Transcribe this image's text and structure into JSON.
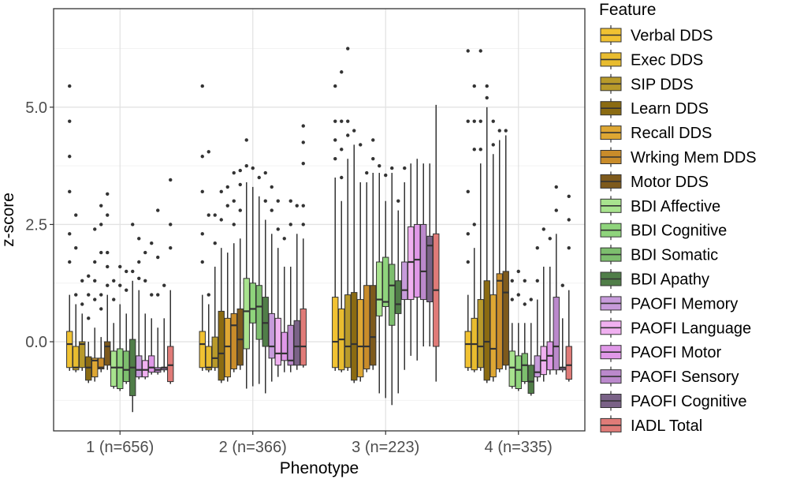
{
  "chart_data": {
    "type": "boxplot",
    "xlabel": "Phenotype",
    "ylabel": "z-score",
    "ylim": [
      -1.9,
      7.1
    ],
    "yticks": [
      0.0,
      2.5,
      5.0
    ],
    "ytick_labels": [
      "0.0",
      "2.5",
      "5.0"
    ],
    "grid": true,
    "legend": {
      "title": "Feature",
      "placement": "right"
    },
    "categories": [
      "1 (n=656)",
      "2 (n=366)",
      "3 (n=223)",
      "4 (n=335)"
    ],
    "series": [
      {
        "name": "Verbal DDS",
        "color": "#F1C232",
        "boxes": [
          {
            "min": -0.62,
            "q1": -0.55,
            "median": -0.05,
            "q3": 0.22,
            "max": 1.0,
            "outliers": [
              1.7,
              2.3,
              3.2,
              3.95,
              4.7,
              5.45
            ]
          },
          {
            "min": -0.62,
            "q1": -0.55,
            "median": -0.05,
            "q3": 0.22,
            "max": 1.0,
            "outliers": [
              1.7,
              2.3,
              3.2,
              3.95,
              5.45
            ]
          },
          {
            "min": -0.62,
            "q1": -0.55,
            "median": 0.0,
            "q3": 0.95,
            "max": 3.5,
            "outliers": [
              3.9,
              4.3,
              4.7,
              5.45
            ]
          },
          {
            "min": -0.62,
            "q1": -0.55,
            "median": -0.05,
            "q3": 0.22,
            "max": 1.0,
            "outliers": [
              1.7,
              2.3,
              3.2,
              4.7,
              6.2
            ]
          }
        ]
      },
      {
        "name": "Exec DDS",
        "color": "#E8BC2F",
        "boxes": [
          {
            "min": -0.65,
            "q1": -0.6,
            "median": -0.55,
            "q3": -0.1,
            "max": 0.8,
            "outliers": [
              1.0,
              2.0,
              2.7
            ]
          },
          {
            "min": -0.65,
            "q1": -0.6,
            "median": -0.55,
            "q3": -0.1,
            "max": 0.8,
            "outliers": [
              1.0,
              2.7,
              4.05
            ]
          },
          {
            "min": -0.65,
            "q1": -0.6,
            "median": 0.05,
            "q3": 0.7,
            "max": 3.0,
            "outliers": [
              3.5,
              4.1,
              4.7,
              5.75
            ]
          },
          {
            "min": -0.65,
            "q1": -0.6,
            "median": -0.05,
            "q3": 0.5,
            "max": 2.0,
            "outliers": [
              2.5,
              4.1,
              4.7,
              5.45
            ]
          }
        ]
      },
      {
        "name": "SIP DDS",
        "color": "#B89A2A",
        "boxes": [
          {
            "min": -0.62,
            "q1": -0.55,
            "median": -0.05,
            "q3": 0.0,
            "max": 0.6,
            "outliers": [
              0.8,
              1.3
            ]
          },
          {
            "min": -0.62,
            "q1": -0.55,
            "median": -0.35,
            "q3": 0.1,
            "max": 1.6,
            "outliers": [
              2.1,
              2.7
            ]
          },
          {
            "min": -0.62,
            "q1": -0.55,
            "median": -0.1,
            "q3": 1.0,
            "max": 3.9,
            "outliers": [
              4.4,
              4.7,
              6.25
            ]
          },
          {
            "min": -0.62,
            "q1": -0.55,
            "median": -0.1,
            "q3": 0.9,
            "max": 3.8,
            "outliers": [
              4.1,
              4.7,
              6.2
            ]
          }
        ]
      },
      {
        "name": "Learn DDS",
        "color": "#8B6B12",
        "boxes": [
          {
            "min": -0.88,
            "q1": -0.82,
            "median": -0.55,
            "q3": -0.32,
            "max": 0.0,
            "outliers": [
              0.5,
              1.0,
              1.4
            ]
          },
          {
            "min": -0.88,
            "q1": -0.82,
            "median": -0.25,
            "q3": 0.65,
            "max": 2.0,
            "outliers": [
              2.6,
              3.2
            ]
          },
          {
            "min": -0.88,
            "q1": -0.82,
            "median": -0.05,
            "q3": 1.05,
            "max": 4.2,
            "outliers": [
              4.5
            ]
          },
          {
            "min": -0.88,
            "q1": -0.82,
            "median": 0.0,
            "q3": 1.3,
            "max": 5.0,
            "outliers": [
              5.2,
              5.45
            ]
          }
        ]
      },
      {
        "name": "Recall DDS",
        "color": "#DEA733",
        "boxes": [
          {
            "min": -0.85,
            "q1": -0.75,
            "median": -0.4,
            "q3": -0.35,
            "max": 0.3,
            "outliers": [
              0.9,
              1.3,
              1.7,
              2.4
            ]
          },
          {
            "min": -0.85,
            "q1": -0.75,
            "median": -0.1,
            "q3": 0.5,
            "max": 1.9,
            "outliers": [
              2.9,
              3.3
            ]
          },
          {
            "min": -0.85,
            "q1": -0.75,
            "median": -0.1,
            "q3": 0.9,
            "max": 3.4,
            "outliers": [
              4.2
            ]
          },
          {
            "min": -0.85,
            "q1": -0.75,
            "median": -0.15,
            "q3": 1.0,
            "max": 4.0,
            "outliers": [
              4.2,
              4.7
            ]
          }
        ]
      },
      {
        "name": "Wrking Mem DDS",
        "color": "#C98C2A",
        "boxes": [
          {
            "min": -0.65,
            "q1": -0.58,
            "median": -0.55,
            "q3": -0.35,
            "max": 0.1,
            "outliers": [
              0.7,
              1.0,
              1.9,
              2.5,
              2.9
            ]
          },
          {
            "min": -0.65,
            "q1": -0.58,
            "median": 0.35,
            "q3": 0.6,
            "max": 2.1,
            "outliers": [
              2.5,
              3.0,
              3.6
            ]
          },
          {
            "min": -0.65,
            "q1": -0.58,
            "median": -0.1,
            "q3": 1.2,
            "max": 3.4,
            "outliers": [
              3.6
            ]
          },
          {
            "min": -0.65,
            "q1": -0.58,
            "median": 1.3,
            "q3": 1.45,
            "max": 4.3,
            "outliers": [
              4.5
            ]
          }
        ]
      },
      {
        "name": "Motor DDS",
        "color": "#7E5A1C",
        "boxes": [
          {
            "min": -0.6,
            "q1": -0.5,
            "median": -0.1,
            "q3": 0.0,
            "max": 1.0,
            "outliers": [
              1.2,
              1.6,
              1.9,
              2.7,
              3.15
            ]
          },
          {
            "min": -0.6,
            "q1": -0.5,
            "median": 0.05,
            "q3": 0.7,
            "max": 2.2,
            "outliers": [
              2.8,
              3.35,
              3.65
            ]
          },
          {
            "min": -0.6,
            "q1": -0.5,
            "median": 0.1,
            "q3": 1.2,
            "max": 3.6,
            "outliers": [
              3.9,
              4.3
            ]
          },
          {
            "min": -0.6,
            "q1": -0.5,
            "median": 1.05,
            "q3": 1.5,
            "max": 4.4,
            "outliers": [
              4.5
            ]
          }
        ]
      },
      {
        "name": "BDI Affective",
        "color": "#A8E38E",
        "boxes": [
          {
            "min": -1.0,
            "q1": -0.95,
            "median": -0.55,
            "q3": -0.2,
            "max": 0.4,
            "outliers": [
              0.9,
              1.3
            ]
          },
          {
            "min": -1.0,
            "q1": -0.15,
            "median": 0.65,
            "q3": 1.35,
            "max": 3.4,
            "outliers": [
              3.75,
              4.3
            ]
          },
          {
            "min": -1.1,
            "q1": 0.55,
            "median": 0.9,
            "q3": 1.7,
            "max": 3.6,
            "outliers": [
              3.75
            ]
          },
          {
            "min": -1.0,
            "q1": -0.95,
            "median": -0.55,
            "q3": -0.2,
            "max": 0.4,
            "outliers": [
              0.9,
              1.3
            ]
          }
        ]
      },
      {
        "name": "BDI Cognitive",
        "color": "#8FD47C",
        "boxes": [
          {
            "min": -1.05,
            "q1": -1.0,
            "median": -0.55,
            "q3": -0.15,
            "max": 0.8,
            "outliers": [
              1.2,
              1.6
            ]
          },
          {
            "min": -0.95,
            "q1": 0.4,
            "median": 0.7,
            "q3": 1.25,
            "max": 3.3,
            "outliers": [
              3.7
            ]
          },
          {
            "min": -1.2,
            "q1": 0.75,
            "median": 0.85,
            "q3": 1.8,
            "max": 3.0,
            "outliers": [
              3.55
            ]
          },
          {
            "min": -1.05,
            "q1": -1.0,
            "median": -0.6,
            "q3": -0.3,
            "max": 0.4,
            "outliers": [
              1.0,
              1.5
            ]
          }
        ]
      },
      {
        "name": "BDI Somatic",
        "color": "#7DBE6E",
        "boxes": [
          {
            "min": -0.9,
            "q1": -0.85,
            "median": -0.6,
            "q3": -0.2,
            "max": 0.6,
            "outliers": [
              1.1,
              1.5
            ]
          },
          {
            "min": -0.9,
            "q1": 0.05,
            "median": 0.75,
            "q3": 1.2,
            "max": 3.1,
            "outliers": [
              3.5
            ]
          },
          {
            "min": -1.35,
            "q1": 0.35,
            "median": 1.2,
            "q3": 1.65,
            "max": 3.6,
            "outliers": [
              3.7
            ]
          },
          {
            "min": -0.9,
            "q1": -0.85,
            "median": -0.5,
            "q3": -0.25,
            "max": 0.4,
            "outliers": [
              0.8,
              1.3
            ]
          }
        ]
      },
      {
        "name": "BDI Apathy",
        "color": "#507E48",
        "boxes": [
          {
            "min": -1.5,
            "q1": -1.15,
            "median": -0.55,
            "q3": 0.05,
            "max": 1.3,
            "outliers": [
              1.5,
              2.5
            ]
          },
          {
            "min": -1.1,
            "q1": -0.1,
            "median": 0.4,
            "q3": 0.95,
            "max": 2.6,
            "outliers": [
              3.0,
              3.6
            ]
          },
          {
            "min": -1.1,
            "q1": 0.6,
            "median": 0.8,
            "q3": 1.3,
            "max": 2.8,
            "outliers": [
              3.0
            ]
          },
          {
            "min": -1.15,
            "q1": -1.1,
            "median": -0.85,
            "q3": -0.5,
            "max": 0.4,
            "outliers": [
              0.9
            ]
          }
        ]
      },
      {
        "name": "PAOFI Memory",
        "color": "#C79BDB",
        "boxes": [
          {
            "min": -0.8,
            "q1": -0.75,
            "median": -0.6,
            "q3": -0.3,
            "max": 1.1,
            "outliers": [
              1.35,
              1.7,
              2.2
            ]
          },
          {
            "min": -0.85,
            "q1": -0.35,
            "median": -0.1,
            "q3": 0.6,
            "max": 2.3,
            "outliers": [
              2.8,
              3.3
            ]
          },
          {
            "min": -0.6,
            "q1": 0.9,
            "median": 1.1,
            "q3": 1.7,
            "max": 3.4,
            "outliers": [
              3.7
            ]
          },
          {
            "min": -0.85,
            "q1": -0.75,
            "median": -0.65,
            "q3": -0.3,
            "max": 0.9,
            "outliers": [
              1.3,
              2.0
            ]
          }
        ]
      },
      {
        "name": "PAOFI Language",
        "color": "#F0B0F0",
        "boxes": [
          {
            "min": -0.8,
            "q1": -0.75,
            "median": -0.6,
            "q3": -0.4,
            "max": 0.6,
            "outliers": [
              1.3,
              1.9
            ]
          },
          {
            "min": -0.75,
            "q1": -0.5,
            "median": -0.25,
            "q3": 0.5,
            "max": 2.0,
            "outliers": [
              2.4,
              3.0
            ]
          },
          {
            "min": -0.3,
            "q1": 0.9,
            "median": 1.7,
            "q3": 2.45,
            "max": 3.8,
            "outliers": []
          },
          {
            "min": -0.85,
            "q1": -0.7,
            "median": -0.4,
            "q3": -0.1,
            "max": 1.6,
            "outliers": [
              2.4
            ]
          }
        ]
      },
      {
        "name": "PAOFI Motor",
        "color": "#E098E8",
        "boxes": [
          {
            "min": -0.7,
            "q1": -0.65,
            "median": -0.55,
            "q3": -0.3,
            "max": 0.5,
            "outliers": [
              1.0,
              2.1
            ]
          },
          {
            "min": -0.65,
            "q1": -0.4,
            "median": -0.25,
            "q3": 0.2,
            "max": 1.6,
            "outliers": [
              2.2
            ]
          },
          {
            "min": -0.4,
            "q1": 0.95,
            "median": 1.75,
            "q3": 2.5,
            "max": 3.9,
            "outliers": []
          },
          {
            "min": -0.7,
            "q1": -0.6,
            "median": -0.3,
            "q3": 0.0,
            "max": 1.6,
            "outliers": [
              2.2
            ]
          }
        ]
      },
      {
        "name": "PAOFI Sensory",
        "color": "#BB89CC",
        "boxes": [
          {
            "min": -0.7,
            "q1": -0.65,
            "median": -0.6,
            "q3": -0.55,
            "max": 0.3,
            "outliers": [
              1.0,
              1.8,
              2.8
            ]
          },
          {
            "min": -0.65,
            "q1": -0.5,
            "median": -0.4,
            "q3": 0.35,
            "max": 1.6,
            "outliers": [
              2.5,
              3.0
            ]
          },
          {
            "min": -0.1,
            "q1": 0.9,
            "median": 1.5,
            "q3": 2.5,
            "max": 3.8,
            "outliers": []
          },
          {
            "min": -0.7,
            "q1": -0.6,
            "median": -0.1,
            "q3": 0.95,
            "max": 2.3,
            "outliers": [
              2.8,
              3.3
            ]
          }
        ]
      },
      {
        "name": "PAOFI Cognitive",
        "color": "#7A6287",
        "boxes": [
          {
            "min": -0.65,
            "q1": -0.6,
            "median": -0.55,
            "q3": -0.55,
            "max": 0.5,
            "outliers": [
              1.2
            ]
          },
          {
            "min": -0.6,
            "q1": -0.5,
            "median": -0.1,
            "q3": 0.45,
            "max": 2.3,
            "outliers": [
              2.9
            ]
          },
          {
            "min": -0.1,
            "q1": 0.85,
            "median": 2.05,
            "q3": 2.25,
            "max": 3.8,
            "outliers": []
          },
          {
            "min": -0.65,
            "q1": -0.6,
            "median": -0.55,
            "q3": -0.55,
            "max": 0.5,
            "outliers": [
              1.2
            ]
          }
        ]
      },
      {
        "name": "IADL Total",
        "color": "#E07B78",
        "boxes": [
          {
            "min": -0.9,
            "q1": -0.85,
            "median": -0.5,
            "q3": -0.1,
            "max": 1.1,
            "outliers": [
              2.0,
              2.5,
              3.45
            ]
          },
          {
            "min": -0.55,
            "q1": -0.5,
            "median": -0.1,
            "q3": 0.7,
            "max": 2.2,
            "outliers": [
              2.5,
              2.9,
              3.8,
              4.25,
              4.6
            ]
          },
          {
            "min": -0.85,
            "q1": -0.1,
            "median": 1.1,
            "q3": 2.3,
            "max": 5.05,
            "outliers": []
          },
          {
            "min": -0.85,
            "q1": -0.8,
            "median": -0.5,
            "q3": -0.1,
            "max": 1.1,
            "outliers": [
              2.0,
              2.6,
              3.1
            ]
          }
        ]
      }
    ]
  }
}
